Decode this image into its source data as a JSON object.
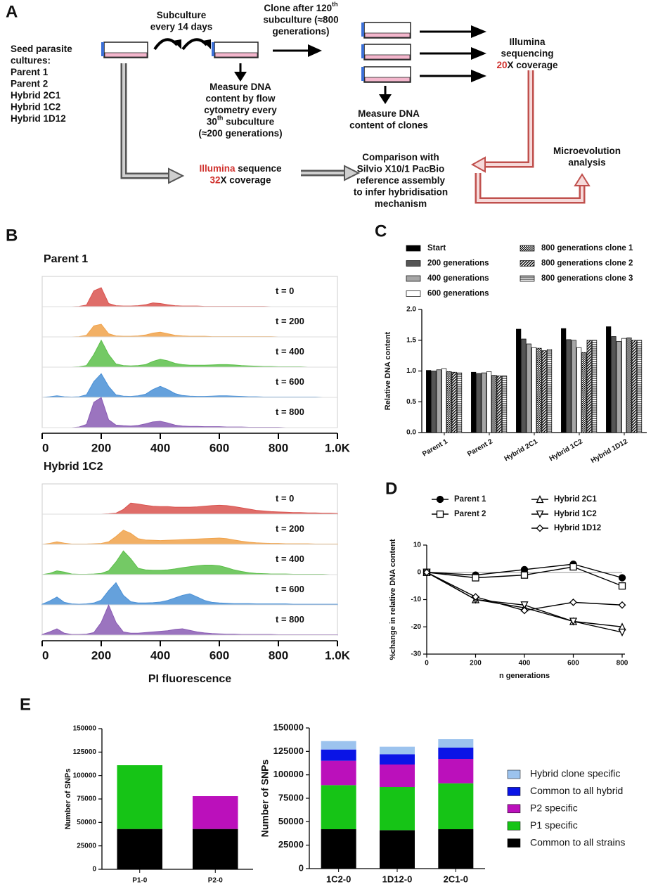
{
  "diagram": {
    "panel": "A",
    "blocks": [
      {
        "lines": [
          [
            "Seed parasite"
          ],
          [
            "cultures:"
          ],
          [
            "Parent 1"
          ],
          [
            "Parent 2"
          ],
          [
            "Hybrid 2C1"
          ],
          [
            "Hybrid 1C2"
          ],
          [
            "Hybrid 1D12"
          ]
        ]
      },
      {
        "lines": [
          [
            "Subculture"
          ],
          [
            "every 14 days"
          ]
        ]
      },
      {
        "lines": [
          [
            "Clone after 120",
            {
              "text": "th",
              "sup": true
            }
          ],
          [
            "subculture (≈800"
          ],
          [
            "generations)"
          ]
        ]
      },
      {
        "lines": [
          [
            "Measure DNA"
          ],
          [
            "content by flow"
          ],
          [
            "cytometry every"
          ],
          [
            "30",
            {
              "text": "th",
              "sup": true
            },
            " subculture"
          ],
          [
            "(≈200 generations)"
          ]
        ]
      },
      {
        "lines": [
          [
            "Illumina"
          ],
          [
            "sequencing"
          ],
          [
            {
              "text": "20",
              "color": "#d0312d"
            },
            "X coverage"
          ]
        ]
      },
      {
        "lines": [
          [
            "Measure DNA"
          ],
          [
            "content of clones"
          ]
        ]
      },
      {
        "lines": [
          [
            {
              "text": "Illumina",
              "color": "#d0312d"
            },
            " sequence"
          ],
          [
            {
              "text": "32",
              "color": "#d0312d"
            },
            "X coverage"
          ]
        ]
      },
      {
        "lines": [
          [
            "Comparison with"
          ],
          [
            "Silvio X10/1 PacBio"
          ],
          [
            "reference assembly"
          ],
          [
            "to infer hybridisation"
          ],
          [
            "mechanism"
          ]
        ]
      },
      {
        "lines": [
          [
            "Microevolution"
          ],
          [
            "analysis"
          ]
        ]
      }
    ]
  },
  "chart_data": [
    {
      "type": "ridgeline",
      "panel": "B",
      "title": "Parent 1",
      "x": [
        0,
        25,
        50,
        75,
        100,
        125,
        150,
        175,
        200,
        225,
        250,
        275,
        300,
        325,
        350,
        375,
        400,
        425,
        450,
        475,
        500,
        525,
        550,
        575,
        600,
        625,
        650,
        675,
        700,
        725,
        750,
        775,
        800,
        825,
        850,
        875,
        900,
        925,
        950,
        975,
        1000
      ],
      "xlim": [
        0,
        1000
      ],
      "xticks": [
        0,
        200,
        400,
        600,
        800,
        {
          "value": 1000,
          "label": "1.0K"
        }
      ],
      "series": [
        {
          "name": "t = 0",
          "color": "#d9534f",
          "values": [
            0,
            0,
            0,
            0,
            0,
            1,
            5,
            50,
            60,
            10,
            3,
            2,
            2,
            3,
            6,
            12,
            10,
            6,
            3,
            2,
            2,
            2,
            1,
            1,
            1,
            1,
            1,
            1,
            1,
            1,
            1,
            0,
            0,
            0,
            0,
            0,
            0,
            0,
            0,
            0,
            0
          ]
        },
        {
          "name": "t = 200",
          "color": "#f0a24a",
          "values": [
            0,
            0,
            0,
            0,
            0,
            1,
            5,
            35,
            40,
            10,
            3,
            2,
            2,
            3,
            6,
            12,
            15,
            10,
            5,
            3,
            2,
            2,
            2,
            1,
            1,
            1,
            1,
            1,
            1,
            1,
            1,
            1,
            0,
            0,
            0,
            0,
            0,
            0,
            0,
            0,
            0
          ]
        },
        {
          "name": "t = 400",
          "color": "#5cbf4a",
          "values": [
            0,
            0,
            0,
            0,
            0,
            1,
            5,
            40,
            85,
            40,
            10,
            5,
            4,
            5,
            8,
            18,
            25,
            20,
            12,
            8,
            6,
            6,
            6,
            7,
            8,
            8,
            7,
            5,
            4,
            3,
            2,
            2,
            1,
            1,
            1,
            1,
            0,
            0,
            0,
            0,
            0
          ]
        },
        {
          "name": "t = 600",
          "color": "#4a90d6",
          "values": [
            0,
            2,
            5,
            2,
            1,
            2,
            8,
            50,
            75,
            35,
            8,
            4,
            3,
            5,
            10,
            25,
            35,
            25,
            12,
            6,
            4,
            3,
            3,
            4,
            5,
            5,
            4,
            3,
            2,
            2,
            1,
            1,
            1,
            1,
            1,
            1,
            1,
            1,
            0,
            0,
            0
          ]
        },
        {
          "name": "t = 800",
          "color": "#8a5cb4",
          "values": [
            0,
            0,
            0,
            0,
            0,
            2,
            10,
            80,
            95,
            25,
            8,
            6,
            5,
            7,
            12,
            18,
            20,
            15,
            8,
            5,
            4,
            4,
            3,
            3,
            3,
            2,
            2,
            2,
            1,
            1,
            1,
            1,
            1,
            0,
            0,
            0,
            0,
            0,
            0,
            0,
            0
          ]
        }
      ]
    },
    {
      "type": "ridgeline",
      "title": "Hybrid 1C2",
      "xlabel": "PI fluorescence",
      "x": [
        0,
        25,
        50,
        75,
        100,
        125,
        150,
        175,
        200,
        225,
        250,
        275,
        300,
        325,
        350,
        375,
        400,
        425,
        450,
        475,
        500,
        525,
        550,
        575,
        600,
        625,
        650,
        675,
        700,
        725,
        750,
        775,
        800,
        825,
        850,
        875,
        900,
        925,
        950,
        975,
        1000
      ],
      "xlim": [
        0,
        1000
      ],
      "xticks": [
        0,
        200,
        400,
        600,
        800,
        {
          "value": 1000,
          "label": "1.0K"
        }
      ],
      "series": [
        {
          "name": "t = 0",
          "color": "#d9534f",
          "values": [
            0,
            0,
            0,
            0,
            0,
            0,
            0,
            0,
            0,
            1,
            3,
            15,
            35,
            32,
            28,
            25,
            24,
            24,
            22,
            22,
            22,
            23,
            25,
            27,
            28,
            27,
            24,
            20,
            16,
            12,
            10,
            8,
            7,
            6,
            5,
            5,
            4,
            4,
            3,
            3,
            2
          ]
        },
        {
          "name": "t = 200",
          "color": "#f0a24a",
          "values": [
            0,
            3,
            8,
            4,
            1,
            1,
            1,
            2,
            3,
            8,
            25,
            45,
            35,
            18,
            14,
            13,
            12,
            13,
            14,
            15,
            16,
            17,
            18,
            19,
            20,
            18,
            14,
            10,
            7,
            5,
            4,
            3,
            3,
            2,
            2,
            2,
            2,
            1,
            1,
            1,
            1
          ]
        },
        {
          "name": "t = 400",
          "color": "#5cbf4a",
          "values": [
            0,
            4,
            12,
            8,
            2,
            1,
            1,
            2,
            4,
            12,
            40,
            75,
            50,
            20,
            15,
            14,
            14,
            15,
            18,
            22,
            25,
            28,
            30,
            30,
            28,
            22,
            15,
            10,
            6,
            4,
            3,
            2,
            2,
            2,
            1,
            1,
            1,
            1,
            1,
            0,
            0
          ]
        },
        {
          "name": "t = 600",
          "color": "#4a90d6",
          "values": [
            2,
            12,
            25,
            8,
            3,
            2,
            3,
            6,
            15,
            45,
            70,
            30,
            10,
            6,
            6,
            7,
            9,
            14,
            22,
            30,
            35,
            25,
            14,
            8,
            6,
            5,
            4,
            4,
            4,
            3,
            3,
            3,
            3,
            3,
            2,
            2,
            2,
            2,
            2,
            2,
            2
          ]
        },
        {
          "name": "t = 800",
          "color": "#8a5cb4",
          "values": [
            2,
            10,
            20,
            6,
            2,
            2,
            3,
            8,
            40,
            95,
            40,
            10,
            6,
            6,
            8,
            10,
            12,
            14,
            18,
            20,
            15,
            10,
            7,
            5,
            4,
            3,
            3,
            2,
            2,
            2,
            2,
            2,
            1,
            1,
            1,
            1,
            1,
            1,
            1,
            1,
            1
          ]
        }
      ]
    },
    {
      "type": "bar",
      "panel": "C",
      "ylabel": "Relative DNA content",
      "categories": [
        "Parent 1",
        "Parent 2",
        "Hybrid 2C1",
        "Hybrid 1C2",
        "Hybrid 1D12"
      ],
      "ylim": [
        0,
        2
      ],
      "yticks": [
        {
          "value": 0,
          "label": "0.0"
        },
        0.5,
        {
          "value": 1,
          "label": "1.0"
        },
        1.5,
        {
          "value": 2,
          "label": "2.0"
        }
      ],
      "series": [
        {
          "name": "Start",
          "color": "#000000",
          "values": [
            1.01,
            0.98,
            1.68,
            1.69,
            1.72
          ]
        },
        {
          "name": "200 generations",
          "color": "#555555",
          "values": [
            1.0,
            0.96,
            1.52,
            1.51,
            1.56
          ]
        },
        {
          "name": "400 generations",
          "color": "#a6a6a6",
          "values": [
            1.02,
            0.97,
            1.44,
            1.5,
            1.48
          ]
        },
        {
          "name": "600 generations",
          "color": "#ffffff",
          "values": [
            1.04,
            0.99,
            1.38,
            1.38,
            1.53
          ]
        },
        {
          "name": "800 generations clone 1",
          "color": "#000000",
          "pattern": "checker",
          "values": [
            0.99,
            0.93,
            1.37,
            1.3,
            1.54
          ]
        },
        {
          "name": "800 generations clone 2",
          "color": "#000000",
          "pattern": "diagonal",
          "values": [
            0.98,
            0.92,
            1.33,
            1.5,
            1.5
          ]
        },
        {
          "name": "800 generations clone 3",
          "color": "#000000",
          "pattern": "horizontal",
          "values": [
            0.97,
            0.92,
            1.35,
            1.5,
            1.5
          ]
        }
      ]
    },
    {
      "type": "line",
      "panel": "D",
      "xlabel": "n generations",
      "ylabel": "%change in relative DNA content",
      "x": [
        0,
        200,
        400,
        600,
        800
      ],
      "xlim": [
        0,
        800
      ],
      "xticks": [
        0,
        200,
        400,
        600,
        800
      ],
      "ylim": [
        -30,
        10
      ],
      "yticks": [
        10,
        0,
        -10,
        -20,
        -30
      ],
      "zero_line": true,
      "series": [
        {
          "name": "Parent 1",
          "color": "#000000",
          "marker": "circle",
          "values": [
            0,
            -1,
            1,
            3,
            -2
          ]
        },
        {
          "name": "Parent 2",
          "color": "#000000",
          "marker": "square-open",
          "values": [
            0,
            -2,
            -1,
            2,
            -5
          ]
        },
        {
          "name": "Hybrid 2C1",
          "color": "#000000",
          "marker": "triangle-open",
          "values": [
            0,
            -10,
            -13,
            -18,
            -20
          ]
        },
        {
          "name": "Hybrid 1C2",
          "color": "#000000",
          "marker": "triangle-down-open",
          "values": [
            0,
            -10,
            -12,
            -18,
            -22
          ]
        },
        {
          "name": "Hybrid 1D12",
          "color": "#000000",
          "marker": "diamond-open",
          "values": [
            0,
            -9,
            -14,
            -11,
            -12
          ]
        }
      ]
    },
    {
      "type": "stacked_bar",
      "panel": "E",
      "ylabel": "Number of SNPs",
      "categories": [
        "P1-0",
        "P2-0"
      ],
      "ylim": [
        0,
        150000
      ],
      "yticks": [
        0,
        25000,
        50000,
        75000,
        100000,
        125000,
        150000
      ],
      "series": [
        {
          "color": "#000000",
          "values": [
            43000,
            43000
          ]
        },
        {
          "color": "#16c416",
          "values": [
            68000,
            0
          ]
        },
        {
          "color": "#bb10bb",
          "values": [
            0,
            35000
          ]
        }
      ]
    },
    {
      "type": "stacked_bar",
      "ylabel": "Number of SNPs",
      "legend": "right",
      "categories": [
        "1C2-0",
        "1D12-0",
        "2C1-0"
      ],
      "ylim": [
        0,
        150000
      ],
      "yticks": [
        0,
        25000,
        50000,
        75000,
        100000,
        125000,
        150000
      ],
      "series": [
        {
          "name": "Common to all strains",
          "color": "#000000",
          "values": [
            42000,
            41000,
            42000
          ]
        },
        {
          "name": "P1 specific",
          "color": "#16c416",
          "values": [
            47000,
            46000,
            49000
          ]
        },
        {
          "name": "P2 specific",
          "color": "#bb10bb",
          "values": [
            26000,
            24000,
            26000
          ]
        },
        {
          "name": "Common to all hybrid",
          "color": "#0a14e6",
          "values": [
            12000,
            11000,
            12000
          ]
        },
        {
          "name": "Hybrid clone specific",
          "color": "#9cc3ee",
          "values": [
            9000,
            8000,
            9000
          ]
        }
      ]
    }
  ]
}
